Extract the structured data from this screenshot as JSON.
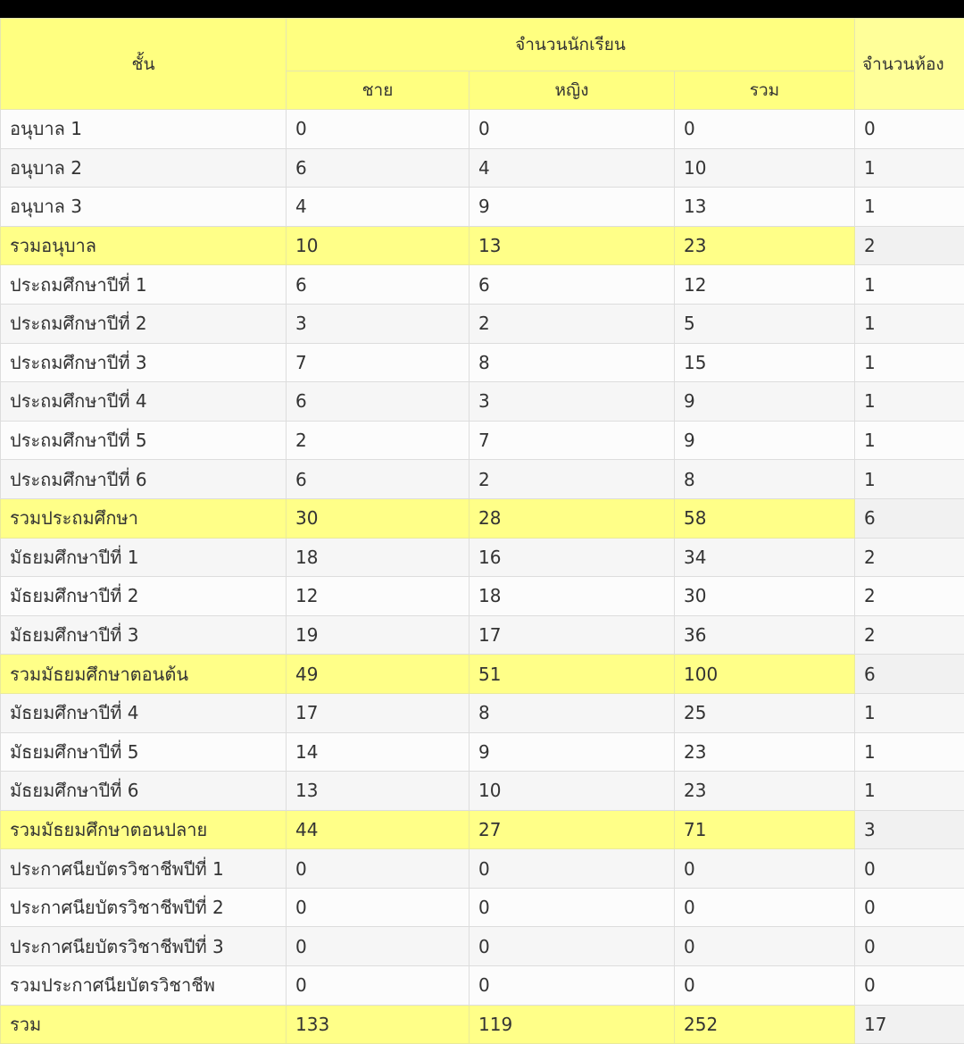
{
  "header": {
    "grade": "ชั้น",
    "students": "จำนวนนักเรียน",
    "rooms": "จำนวนห้อง",
    "male": "ชาย",
    "female": "หญิง",
    "total": "รวม"
  },
  "colors": {
    "highlight": "#ffff88",
    "header": "#ffff80"
  },
  "rows": [
    {
      "grade": "อนุบาล 1",
      "male": "0",
      "female": "0",
      "total": "0",
      "rooms": "0",
      "summary": false
    },
    {
      "grade": "อนุบาล 2",
      "male": "6",
      "female": "4",
      "total": "10",
      "rooms": "1",
      "summary": false
    },
    {
      "grade": "อนุบาล 3",
      "male": "4",
      "female": "9",
      "total": "13",
      "rooms": "1",
      "summary": false
    },
    {
      "grade": "รวมอนุบาล",
      "male": "10",
      "female": "13",
      "total": "23",
      "rooms": "2",
      "summary": true
    },
    {
      "grade": "ประถมศึกษาปีที่ 1",
      "male": "6",
      "female": "6",
      "total": "12",
      "rooms": "1",
      "summary": false
    },
    {
      "grade": "ประถมศึกษาปีที่ 2",
      "male": "3",
      "female": "2",
      "total": "5",
      "rooms": "1",
      "summary": false
    },
    {
      "grade": "ประถมศึกษาปีที่ 3",
      "male": "7",
      "female": "8",
      "total": "15",
      "rooms": "1",
      "summary": false
    },
    {
      "grade": "ประถมศึกษาปีที่ 4",
      "male": "6",
      "female": "3",
      "total": "9",
      "rooms": "1",
      "summary": false
    },
    {
      "grade": "ประถมศึกษาปีที่ 5",
      "male": "2",
      "female": "7",
      "total": "9",
      "rooms": "1",
      "summary": false
    },
    {
      "grade": "ประถมศึกษาปีที่ 6",
      "male": "6",
      "female": "2",
      "total": "8",
      "rooms": "1",
      "summary": false
    },
    {
      "grade": "รวมประถมศึกษา",
      "male": "30",
      "female": "28",
      "total": "58",
      "rooms": "6",
      "summary": true
    },
    {
      "grade": "มัธยมศึกษาปีที่ 1",
      "male": "18",
      "female": "16",
      "total": "34",
      "rooms": "2",
      "summary": false
    },
    {
      "grade": "มัธยมศึกษาปีที่ 2",
      "male": "12",
      "female": "18",
      "total": "30",
      "rooms": "2",
      "summary": false
    },
    {
      "grade": "มัธยมศึกษาปีที่ 3",
      "male": "19",
      "female": "17",
      "total": "36",
      "rooms": "2",
      "summary": false
    },
    {
      "grade": "รวมมัธยมศึกษาตอนต้น",
      "male": "49",
      "female": "51",
      "total": "100",
      "rooms": "6",
      "summary": true
    },
    {
      "grade": "มัธยมศึกษาปีที่ 4",
      "male": "17",
      "female": "8",
      "total": "25",
      "rooms": "1",
      "summary": false
    },
    {
      "grade": "มัธยมศึกษาปีที่ 5",
      "male": "14",
      "female": "9",
      "total": "23",
      "rooms": "1",
      "summary": false
    },
    {
      "grade": "มัธยมศึกษาปีที่ 6",
      "male": "13",
      "female": "10",
      "total": "23",
      "rooms": "1",
      "summary": false
    },
    {
      "grade": "รวมมัธยมศึกษาตอนปลาย",
      "male": "44",
      "female": "27",
      "total": "71",
      "rooms": "3",
      "summary": true
    },
    {
      "grade": "ประกาศนียบัตรวิชาชีพปีที่ 1",
      "male": "0",
      "female": "0",
      "total": "0",
      "rooms": "0",
      "summary": false
    },
    {
      "grade": "ประกาศนียบัตรวิชาชีพปีที่ 2",
      "male": "0",
      "female": "0",
      "total": "0",
      "rooms": "0",
      "summary": false
    },
    {
      "grade": "ประกาศนียบัตรวิชาชีพปีที่ 3",
      "male": "0",
      "female": "0",
      "total": "0",
      "rooms": "0",
      "summary": false
    },
    {
      "grade": "รวมประกาศนียบัตรวิชาชีพ",
      "male": "0",
      "female": "0",
      "total": "0",
      "rooms": "0",
      "summary": false
    },
    {
      "grade": "รวม",
      "male": "133",
      "female": "119",
      "total": "252",
      "rooms": "17",
      "summary": true
    }
  ]
}
